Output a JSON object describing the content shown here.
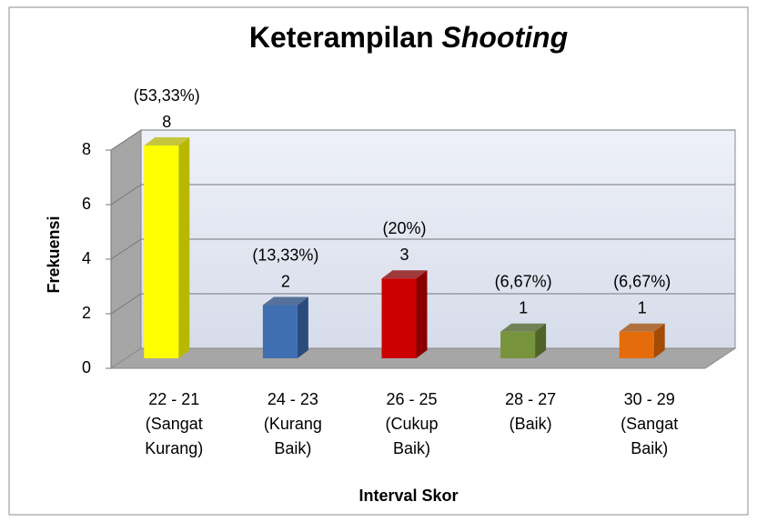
{
  "chart_data": {
    "type": "bar3d",
    "title": "Keterampilan",
    "title_italic": "Shooting",
    "x_label": "Interval Skor",
    "y_label": "Frekuensi",
    "categories": [
      [
        "22 - 21",
        "(Sangat",
        "Kurang)"
      ],
      [
        "24 - 23",
        "(Kurang",
        "Baik)"
      ],
      [
        "26 - 25",
        "(Cukup",
        "Baik)"
      ],
      [
        "28 - 27",
        "(Baik)"
      ],
      [
        "30 - 29",
        "(Sangat",
        "Baik)"
      ]
    ],
    "values": [
      8,
      2,
      3,
      1,
      1
    ],
    "percent_labels": [
      "(53,33%)",
      "(13,33%)",
      "(20%)",
      "(6,67%)",
      "(6,67%)"
    ],
    "colors": [
      "#ffff00",
      "#3f6fb0",
      "#cc0000",
      "#77933c",
      "#e46c0a"
    ],
    "side_colors": [
      "#b8b800",
      "#2a4c7c",
      "#8a0000",
      "#4f6328",
      "#a34c06"
    ],
    "ylim": [
      0,
      8
    ],
    "yticks": [
      0,
      2,
      4,
      6,
      8
    ],
    "grid": true
  }
}
